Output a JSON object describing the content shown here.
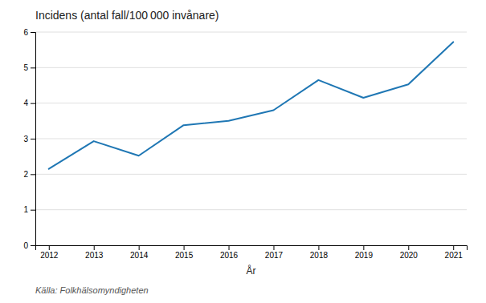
{
  "chart_data": {
    "type": "line",
    "title": "Incidens (antal fall/100 000 invånare)",
    "xlabel": "År",
    "source": "Källa: Folkhälsomyndigheten",
    "x": [
      2012,
      2013,
      2014,
      2015,
      2016,
      2017,
      2018,
      2019,
      2020,
      2021
    ],
    "values": [
      2.15,
      2.93,
      2.52,
      3.38,
      3.5,
      3.8,
      4.65,
      4.15,
      4.53,
      5.72
    ],
    "xlim": [
      2011.7,
      2021.3
    ],
    "xticks": [
      2012,
      2013,
      2014,
      2015,
      2016,
      2017,
      2018,
      2019,
      2020,
      2021
    ],
    "ylim": [
      0,
      6
    ],
    "yticks": [
      0,
      1,
      2,
      3,
      4,
      5,
      6
    ],
    "grid": true
  }
}
